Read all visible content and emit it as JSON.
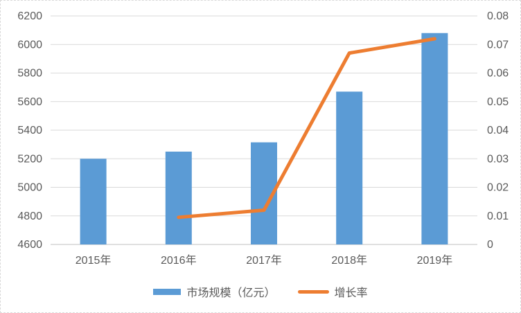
{
  "chart_data": {
    "type": "combo",
    "title": "",
    "categories": [
      "2015年",
      "2016年",
      "2017年",
      "2018年",
      "2019年"
    ],
    "series": [
      {
        "name": "市场规模（亿元）",
        "type": "bar",
        "axis": "left",
        "color": "#5B9BD5",
        "values": [
          5200,
          5250,
          5315,
          5670,
          6080
        ]
      },
      {
        "name": "增长率",
        "type": "line",
        "axis": "right",
        "color": "#ED7D31",
        "values": [
          null,
          0.0095,
          0.012,
          0.067,
          0.072
        ]
      }
    ],
    "left_axis": {
      "min": 4600,
      "max": 6200,
      "step": 200,
      "tick_labels": [
        "4600",
        "4800",
        "5000",
        "5200",
        "5400",
        "5600",
        "5800",
        "6000",
        "6200"
      ]
    },
    "right_axis": {
      "min": 0,
      "max": 0.08,
      "step": 0.01,
      "tick_labels": [
        "0",
        "0.01",
        "0.02",
        "0.03",
        "0.04",
        "0.05",
        "0.06",
        "0.07",
        "0.08"
      ]
    },
    "grid": true,
    "legend": {
      "position": "bottom"
    },
    "colors": {
      "gridline": "#D9D9D9",
      "axis_line": "#C0C0C0",
      "tick_text": "#595959",
      "background": "#FFFFFF"
    }
  }
}
